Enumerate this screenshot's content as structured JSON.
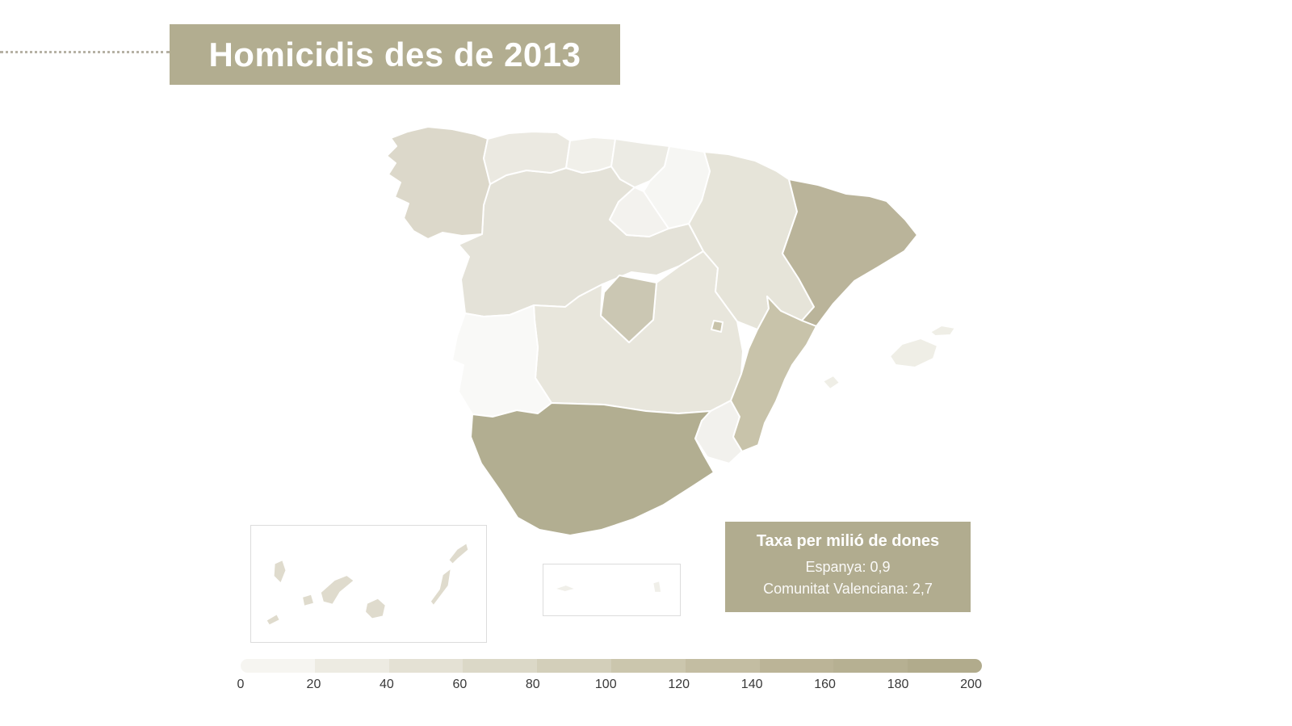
{
  "title": {
    "text": "Homicidis des de 2013"
  },
  "tooltip": {
    "title": "Taxa per milió de dones",
    "line1": "Espanya: 0,9",
    "line2": "Comunitat Valenciana: 2,7"
  },
  "colors": {
    "banner_bg": "#b2ad90",
    "tooltip_bg": "#b1ac8f",
    "dotted_line": "#b6b2a5",
    "inset_border": "#dcdcdc",
    "map_border": "#ffffff",
    "tick_text": "#383838"
  },
  "legend": {
    "ticks": [
      "0",
      "20",
      "40",
      "60",
      "80",
      "100",
      "120",
      "140",
      "160",
      "180",
      "200"
    ],
    "colors": [
      "#f6f5f1",
      "#edebe2",
      "#e4e1d4",
      "#dbd8c7",
      "#d3cfba",
      "#cbc6ad",
      "#c3bda2",
      "#bbb497",
      "#b6b092",
      "#b1ab8c"
    ]
  },
  "map": {
    "colors": {
      "galicia": "#dcd8ca",
      "asturies": "#ebe9e1",
      "cantabria": "#f1f0ea",
      "pais_basc": "#ecebe4",
      "navarra": "#f6f6f3",
      "la_rioja": "#f3f2ee",
      "arago": "#e6e4d9",
      "catalunya": "#bab49a",
      "castella_lleo": "#e4e2d8",
      "madrid": "#cbc7b3",
      "castella_la_manxa": "#e8e6dc",
      "extremadura": "#f9f9f7",
      "valenciana": "#c8c3aa",
      "murcia": "#f2f1ed",
      "andalusia": "#b2ae91",
      "balears": "#efeee6",
      "canaries": "#dfdbcd",
      "ceuta_melilla": "#f0efe9"
    }
  },
  "chart_data": {
    "type": "choropleth",
    "title": "Homicidis des de 2013",
    "legend_title": "Taxa per milió de dones",
    "scale": {
      "min": 0,
      "max": 200,
      "tick_step": 20,
      "low_color": "#f6f5f1",
      "high_color": "#b1ab8c"
    },
    "tooltip_values": {
      "Espanya": "0,9",
      "Comunitat Valenciana": "2,7"
    },
    "regions": [
      {
        "name": "Galícia",
        "fill": "#dcd8ca"
      },
      {
        "name": "Astúries",
        "fill": "#ebe9e1"
      },
      {
        "name": "Cantàbria",
        "fill": "#f1f0ea"
      },
      {
        "name": "País Basc",
        "fill": "#ecebe4"
      },
      {
        "name": "Navarra",
        "fill": "#f6f6f3"
      },
      {
        "name": "La Rioja",
        "fill": "#f3f2ee"
      },
      {
        "name": "Aragó",
        "fill": "#e6e4d9"
      },
      {
        "name": "Catalunya",
        "fill": "#bab49a"
      },
      {
        "name": "Castella i Lleó",
        "fill": "#e4e2d8"
      },
      {
        "name": "Madrid",
        "fill": "#cbc7b3"
      },
      {
        "name": "Castella-la Manxa",
        "fill": "#e8e6dc"
      },
      {
        "name": "Extremadura",
        "fill": "#f9f9f7"
      },
      {
        "name": "Comunitat Valenciana",
        "fill": "#c8c3aa"
      },
      {
        "name": "Múrcia",
        "fill": "#f2f1ed"
      },
      {
        "name": "Andalusia",
        "fill": "#b2ae91"
      },
      {
        "name": "Illes Balears",
        "fill": "#efeee6"
      },
      {
        "name": "Illes Canàries",
        "fill": "#dfdbcd"
      },
      {
        "name": "Ceuta",
        "fill": "#f0efe9"
      },
      {
        "name": "Melilla",
        "fill": "#f0efe9"
      }
    ]
  }
}
